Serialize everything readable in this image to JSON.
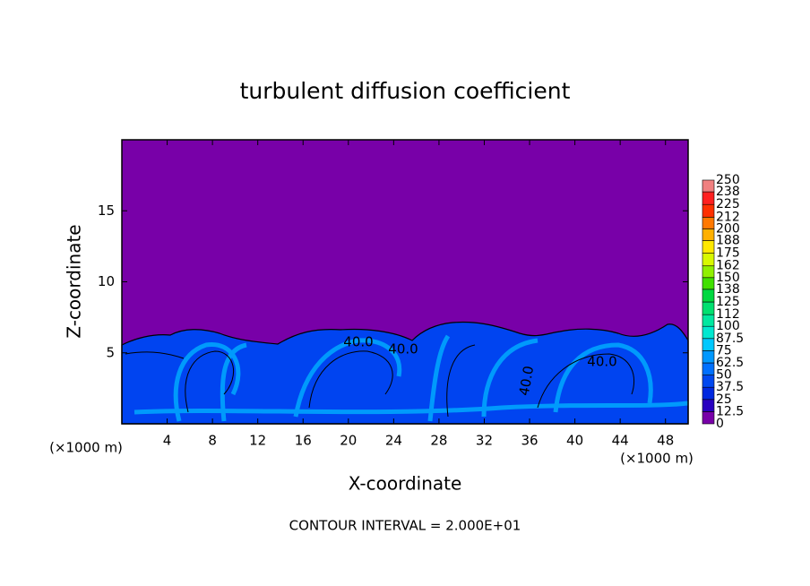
{
  "chart_data": {
    "type": "contour",
    "title": "turbulent diffusion coefficient",
    "x_label": "X-coordinate",
    "y_label": "Z-coordinate",
    "x_unit_labels": [
      "(×1000 m)",
      "(×1000 m)"
    ],
    "annotation": "CONTOUR INTERVAL = 2.000E+01",
    "contour_labels": [
      "40.0",
      "40.0",
      "40.0",
      "40.0"
    ],
    "xlim": [
      0,
      50
    ],
    "xticks": [
      4,
      8,
      12,
      16,
      20,
      24,
      28,
      32,
      36,
      40,
      44,
      48
    ],
    "ylim": [
      0,
      20
    ],
    "yticks": [
      5,
      10,
      15
    ],
    "background_color": "#7800a8",
    "colorbar": {
      "levels": [
        0,
        12.5,
        25,
        37.5,
        50,
        62.5,
        75,
        87.5,
        100,
        112,
        125,
        138,
        150,
        162,
        175,
        188,
        200,
        212,
        225,
        238,
        250
      ],
      "colors": [
        "#7800a8",
        "#2800c0",
        "#0028e0",
        "#0048f0",
        "#0070ff",
        "#0098ff",
        "#00c8ff",
        "#00e8d0",
        "#00e8a0",
        "#00e070",
        "#00d840",
        "#40e000",
        "#90f000",
        "#d8f800",
        "#ffe800",
        "#ffb000",
        "#ff7800",
        "#ff3000",
        "#ff2020",
        "#f08080"
      ]
    }
  }
}
